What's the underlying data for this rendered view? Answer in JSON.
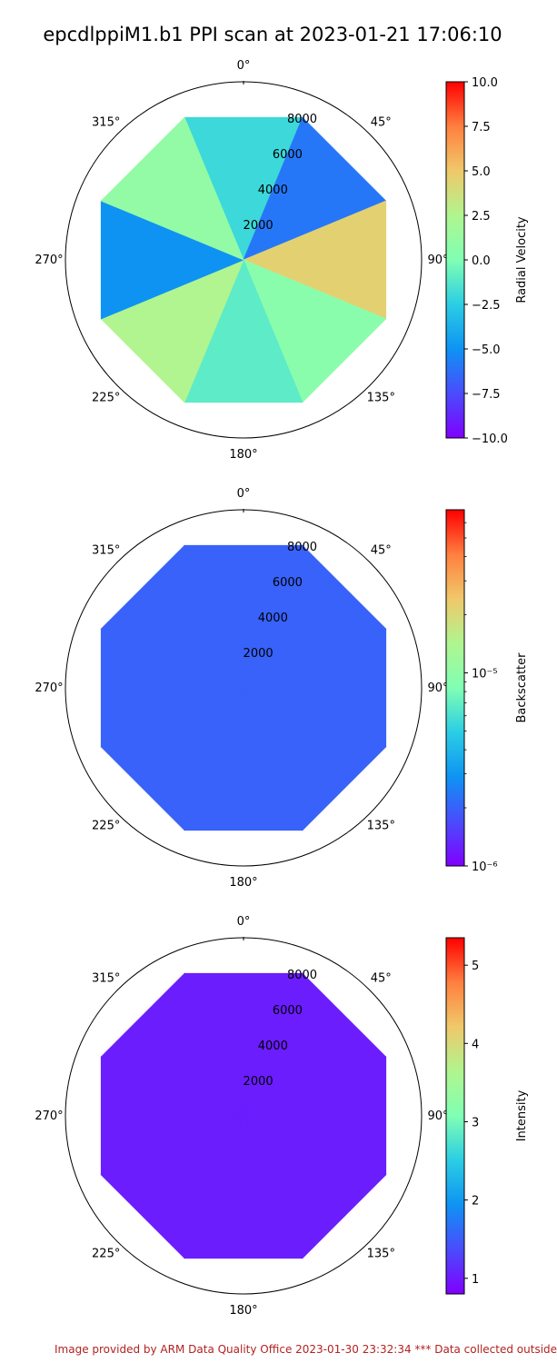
{
  "title": "epcdlppiM1.b1 PPI scan at 2023-01-21 17:06:10",
  "footer": "Image provided by ARM Data Quality Office 2023-01-30 23:32:34    *** Data collected outside",
  "chart_data": [
    {
      "type": "polar-heatmap",
      "angle_ticks": [
        "0°",
        "45°",
        "90°",
        "135°",
        "180°",
        "225°",
        "270°",
        "315°"
      ],
      "radial_ticks": [
        2000,
        4000,
        6000,
        8000
      ],
      "rmax": 9300,
      "theta_zero": "N",
      "theta_direction": "clockwise",
      "colormap": "rainbow",
      "colorbar": {
        "label": "Radial Velocity",
        "scale": "linear",
        "range": [
          -10.0,
          10.0
        ],
        "tick_values": [
          -10.0,
          -7.5,
          -5.0,
          -2.5,
          0.0,
          2.5,
          5.0,
          7.5,
          10.0
        ],
        "tick_labels": [
          "−10.0",
          "−7.5",
          "−5.0",
          "−2.5",
          "0.0",
          "2.5",
          "5.0",
          "7.5",
          "10.0"
        ]
      },
      "sector_values": [
        -2.0,
        -6.0,
        4.5,
        0.5,
        -1.0,
        2.5,
        -5.0,
        1.0
      ]
    },
    {
      "type": "polar-heatmap",
      "angle_ticks": [
        "0°",
        "45°",
        "90°",
        "135°",
        "180°",
        "225°",
        "270°",
        "315°"
      ],
      "radial_ticks": [
        2000,
        4000,
        6000,
        8000
      ],
      "rmax": 9300,
      "theta_zero": "N",
      "theta_direction": "clockwise",
      "colormap": "rainbow",
      "colorbar": {
        "label": "Backscatter",
        "scale": "log",
        "range": [
          1e-06,
          7e-05
        ],
        "tick_values": [
          1e-06,
          1e-05
        ],
        "tick_labels": [
          "10⁻⁶",
          "10⁻⁵"
        ]
      },
      "sector_values": [
        2e-06,
        2e-06,
        2e-06,
        2e-06,
        2e-06,
        2e-06,
        2e-06,
        2e-06
      ]
    },
    {
      "type": "polar-heatmap",
      "angle_ticks": [
        "0°",
        "45°",
        "90°",
        "135°",
        "180°",
        "225°",
        "270°",
        "315°"
      ],
      "radial_ticks": [
        2000,
        4000,
        6000,
        8000
      ],
      "rmax": 9300,
      "theta_zero": "N",
      "theta_direction": "clockwise",
      "colormap": "rainbow",
      "colorbar": {
        "label": "Intensity",
        "scale": "linear",
        "range": [
          0.8,
          5.35
        ],
        "tick_values": [
          1,
          2,
          3,
          4,
          5
        ],
        "tick_labels": [
          "1",
          "2",
          "3",
          "4",
          "5"
        ]
      },
      "sector_values": [
        1.02,
        1.02,
        1.02,
        1.02,
        1.02,
        1.02,
        1.02,
        1.02
      ]
    }
  ]
}
